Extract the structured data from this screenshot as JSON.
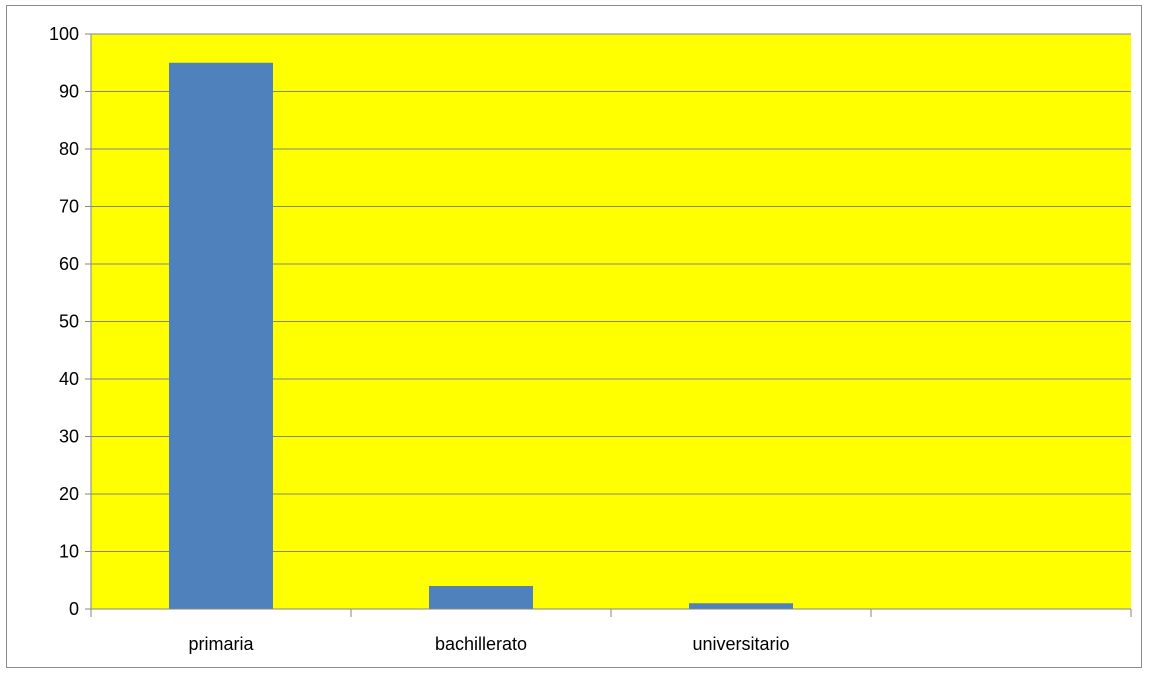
{
  "chart_data": {
    "type": "bar",
    "categories": [
      "primaria",
      "bachillerato",
      "universitario",
      ""
    ],
    "values": [
      95,
      4,
      1,
      0
    ],
    "ylim": [
      0,
      100
    ],
    "ytick_step": 10,
    "y_ticks": [
      "0",
      "10",
      "20",
      "30",
      "40",
      "50",
      "60",
      "70",
      "80",
      "90",
      "100"
    ],
    "grid": true,
    "legend": "none",
    "colors": {
      "plot_background": "#FFFF00",
      "bar": "#4F81BD",
      "gridline": "#868686",
      "axis": "#868686",
      "frame": "#8C8C8C"
    }
  }
}
